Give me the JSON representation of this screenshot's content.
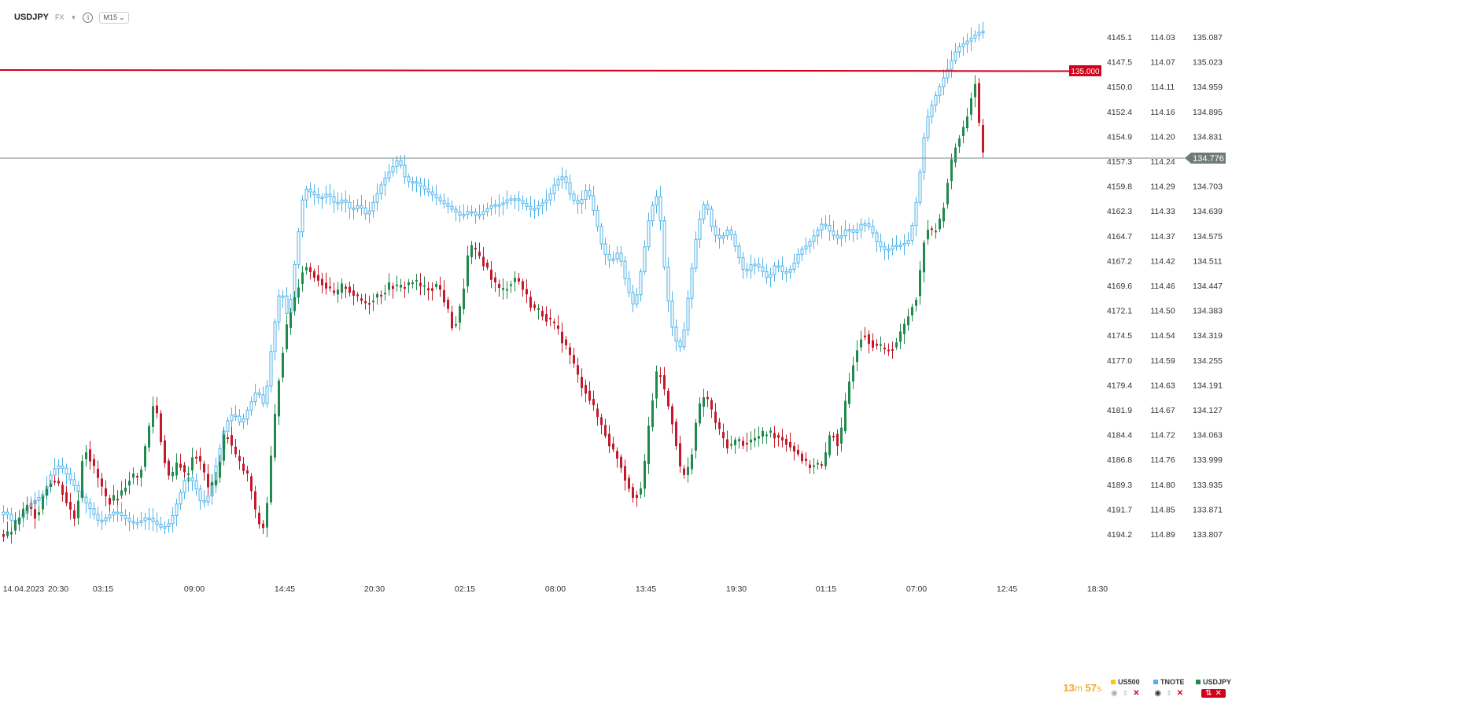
{
  "header": {
    "symbol": "USDJPY",
    "market": "FX",
    "timeframe": "M15"
  },
  "chart_data": {
    "type": "candlestick",
    "x_tick_labels": [
      "14.04.2023",
      "20:30",
      "03:15",
      "09:00",
      "14:45",
      "20:30",
      "02:15",
      "08:00",
      "13:45",
      "19:30",
      "01:15",
      "07:00",
      "12:45",
      "18:30"
    ],
    "axis_us500": {
      "labels": [
        "4145.1",
        "4147.5",
        "4150.0",
        "4152.4",
        "4154.9",
        "4157.3",
        "4159.8",
        "4162.3",
        "4164.7",
        "4167.2",
        "4169.6",
        "4172.1",
        "4174.5",
        "4177.0",
        "4179.4",
        "4181.9",
        "4184.4",
        "4186.8",
        "4189.3",
        "4191.7",
        "4194.2"
      ]
    },
    "axis_tnote": {
      "labels": [
        "114.03",
        "114.07",
        "114.11",
        "114.16",
        "114.20",
        "114.24",
        "114.29",
        "114.33",
        "114.37",
        "114.42",
        "114.46",
        "114.50",
        "114.54",
        "114.59",
        "114.63",
        "114.67",
        "114.72",
        "114.76",
        "114.80",
        "114.85",
        "114.89"
      ]
    },
    "axis_usdjpy": {
      "labels": [
        "135.087",
        "135.023",
        "134.959",
        "134.895",
        "134.831",
        "134.767",
        "134.703",
        "134.639",
        "134.575",
        "134.511",
        "134.447",
        "134.383",
        "134.319",
        "134.255",
        "134.191",
        "134.127",
        "134.063",
        "133.999",
        "133.935",
        "133.871",
        "133.807"
      ],
      "ylim": [
        133.78,
        135.13
      ]
    },
    "horizontal_line": {
      "value": 135.0,
      "label": "135.000",
      "color": "#d0021b"
    },
    "current_price": {
      "value": 134.776,
      "label": "134.776"
    },
    "usdjpy_path": [
      [
        0,
        133.81
      ],
      [
        10,
        133.8
      ],
      [
        20,
        133.82
      ],
      [
        30,
        133.86
      ],
      [
        40,
        133.88
      ],
      [
        50,
        133.85
      ],
      [
        60,
        133.92
      ],
      [
        70,
        133.95
      ],
      [
        80,
        133.93
      ],
      [
        90,
        133.88
      ],
      [
        100,
        133.84
      ],
      [
        110,
        134.04
      ],
      [
        120,
        133.99
      ],
      [
        130,
        133.94
      ],
      [
        140,
        133.89
      ],
      [
        150,
        133.9
      ],
      [
        160,
        133.92
      ],
      [
        170,
        133.96
      ],
      [
        180,
        133.95
      ],
      [
        190,
        134.05
      ],
      [
        200,
        134.16
      ],
      [
        210,
        134.02
      ],
      [
        220,
        133.94
      ],
      [
        230,
        134.0
      ],
      [
        240,
        133.95
      ],
      [
        250,
        134.02
      ],
      [
        260,
        133.98
      ],
      [
        270,
        133.92
      ],
      [
        280,
        133.96
      ],
      [
        290,
        134.08
      ],
      [
        300,
        134.02
      ],
      [
        310,
        133.98
      ],
      [
        320,
        133.95
      ],
      [
        330,
        133.84
      ],
      [
        340,
        133.82
      ],
      [
        350,
        134.05
      ],
      [
        360,
        134.25
      ],
      [
        370,
        134.36
      ],
      [
        380,
        134.43
      ],
      [
        390,
        134.5
      ],
      [
        400,
        134.48
      ],
      [
        410,
        134.46
      ],
      [
        420,
        134.44
      ],
      [
        430,
        134.42
      ],
      [
        440,
        134.45
      ],
      [
        450,
        134.43
      ],
      [
        460,
        134.41
      ],
      [
        470,
        134.4
      ],
      [
        480,
        134.42
      ],
      [
        490,
        134.43
      ],
      [
        500,
        134.45
      ],
      [
        510,
        134.44
      ],
      [
        520,
        134.45
      ],
      [
        530,
        134.46
      ],
      [
        540,
        134.44
      ],
      [
        550,
        134.44
      ],
      [
        560,
        134.45
      ],
      [
        570,
        134.4
      ],
      [
        580,
        134.33
      ],
      [
        590,
        134.4
      ],
      [
        600,
        134.55
      ],
      [
        610,
        134.53
      ],
      [
        620,
        134.5
      ],
      [
        630,
        134.46
      ],
      [
        640,
        134.43
      ],
      [
        650,
        134.45
      ],
      [
        660,
        134.47
      ],
      [
        670,
        134.43
      ],
      [
        680,
        134.39
      ],
      [
        690,
        134.38
      ],
      [
        700,
        134.36
      ],
      [
        710,
        134.34
      ],
      [
        720,
        134.3
      ],
      [
        730,
        134.26
      ],
      [
        740,
        134.2
      ],
      [
        750,
        134.17
      ],
      [
        760,
        134.12
      ],
      [
        770,
        134.08
      ],
      [
        780,
        134.03
      ],
      [
        790,
        134.0
      ],
      [
        800,
        133.94
      ],
      [
        810,
        133.9
      ],
      [
        820,
        133.93
      ],
      [
        830,
        134.12
      ],
      [
        840,
        134.24
      ],
      [
        850,
        134.16
      ],
      [
        860,
        134.08
      ],
      [
        870,
        133.95
      ],
      [
        880,
        133.98
      ],
      [
        890,
        134.12
      ],
      [
        900,
        134.17
      ],
      [
        910,
        134.11
      ],
      [
        920,
        134.06
      ],
      [
        930,
        134.03
      ],
      [
        940,
        134.05
      ],
      [
        950,
        134.04
      ],
      [
        960,
        134.05
      ],
      [
        970,
        134.06
      ],
      [
        980,
        134.07
      ],
      [
        990,
        134.06
      ],
      [
        1000,
        134.05
      ],
      [
        1010,
        134.03
      ],
      [
        1020,
        134.01
      ],
      [
        1030,
        133.98
      ],
      [
        1040,
        133.99
      ],
      [
        1050,
        133.98
      ],
      [
        1060,
        134.08
      ],
      [
        1070,
        134.03
      ],
      [
        1080,
        134.17
      ],
      [
        1090,
        134.27
      ],
      [
        1100,
        134.33
      ],
      [
        1110,
        134.3
      ],
      [
        1120,
        134.29
      ],
      [
        1130,
        134.28
      ],
      [
        1140,
        134.29
      ],
      [
        1150,
        134.33
      ],
      [
        1160,
        134.38
      ],
      [
        1170,
        134.43
      ],
      [
        1180,
        134.6
      ],
      [
        1190,
        134.58
      ],
      [
        1200,
        134.62
      ],
      [
        1210,
        134.74
      ],
      [
        1220,
        134.82
      ],
      [
        1230,
        134.86
      ],
      [
        1240,
        134.95
      ],
      [
        1245,
        134.98
      ],
      [
        1250,
        134.78
      ]
    ],
    "tnote_path": [
      [
        0,
        114.86
      ],
      [
        10,
        114.85
      ],
      [
        20,
        114.87
      ],
      [
        30,
        114.86
      ],
      [
        40,
        114.84
      ],
      [
        50,
        114.83
      ],
      [
        60,
        114.82
      ],
      [
        70,
        114.78
      ],
      [
        80,
        114.77
      ],
      [
        90,
        114.79
      ],
      [
        100,
        114.81
      ],
      [
        110,
        114.83
      ],
      [
        120,
        114.85
      ],
      [
        130,
        114.87
      ],
      [
        140,
        114.86
      ],
      [
        150,
        114.85
      ],
      [
        160,
        114.86
      ],
      [
        170,
        114.87
      ],
      [
        180,
        114.87
      ],
      [
        190,
        114.86
      ],
      [
        200,
        114.87
      ],
      [
        210,
        114.88
      ],
      [
        220,
        114.87
      ],
      [
        230,
        114.83
      ],
      [
        240,
        114.79
      ],
      [
        250,
        114.8
      ],
      [
        260,
        114.84
      ],
      [
        270,
        114.82
      ],
      [
        280,
        114.76
      ],
      [
        290,
        114.7
      ],
      [
        300,
        114.68
      ],
      [
        310,
        114.7
      ],
      [
        320,
        114.67
      ],
      [
        330,
        114.64
      ],
      [
        340,
        114.67
      ],
      [
        350,
        114.55
      ],
      [
        360,
        114.46
      ],
      [
        370,
        114.52
      ],
      [
        380,
        114.4
      ],
      [
        390,
        114.29
      ],
      [
        400,
        114.3
      ],
      [
        410,
        114.31
      ],
      [
        420,
        114.3
      ],
      [
        430,
        114.32
      ],
      [
        440,
        114.31
      ],
      [
        450,
        114.33
      ],
      [
        460,
        114.32
      ],
      [
        470,
        114.34
      ],
      [
        480,
        114.31
      ],
      [
        490,
        114.28
      ],
      [
        500,
        114.26
      ],
      [
        510,
        114.24
      ],
      [
        520,
        114.28
      ],
      [
        530,
        114.28
      ],
      [
        540,
        114.29
      ],
      [
        550,
        114.3
      ],
      [
        560,
        114.31
      ],
      [
        570,
        114.32
      ],
      [
        580,
        114.33
      ],
      [
        590,
        114.34
      ],
      [
        600,
        114.33
      ],
      [
        610,
        114.34
      ],
      [
        620,
        114.33
      ],
      [
        630,
        114.32
      ],
      [
        640,
        114.32
      ],
      [
        650,
        114.31
      ],
      [
        660,
        114.31
      ],
      [
        670,
        114.32
      ],
      [
        680,
        114.33
      ],
      [
        690,
        114.32
      ],
      [
        700,
        114.31
      ],
      [
        710,
        114.28
      ],
      [
        720,
        114.27
      ],
      [
        730,
        114.31
      ],
      [
        740,
        114.32
      ],
      [
        750,
        114.29
      ],
      [
        760,
        114.34
      ],
      [
        770,
        114.4
      ],
      [
        780,
        114.42
      ],
      [
        790,
        114.4
      ],
      [
        800,
        114.46
      ],
      [
        810,
        114.5
      ],
      [
        820,
        114.42
      ],
      [
        830,
        114.33
      ],
      [
        840,
        114.3
      ],
      [
        850,
        114.46
      ],
      [
        860,
        114.55
      ],
      [
        870,
        114.57
      ],
      [
        880,
        114.46
      ],
      [
        890,
        114.36
      ],
      [
        900,
        114.31
      ],
      [
        910,
        114.37
      ],
      [
        920,
        114.38
      ],
      [
        930,
        114.36
      ],
      [
        940,
        114.4
      ],
      [
        950,
        114.44
      ],
      [
        960,
        114.42
      ],
      [
        970,
        114.43
      ],
      [
        980,
        114.45
      ],
      [
        990,
        114.42
      ],
      [
        1000,
        114.44
      ],
      [
        1010,
        114.43
      ],
      [
        1020,
        114.4
      ],
      [
        1030,
        114.39
      ],
      [
        1040,
        114.37
      ],
      [
        1050,
        114.35
      ],
      [
        1060,
        114.37
      ],
      [
        1070,
        114.38
      ],
      [
        1080,
        114.36
      ],
      [
        1090,
        114.37
      ],
      [
        1100,
        114.35
      ],
      [
        1110,
        114.36
      ],
      [
        1120,
        114.39
      ],
      [
        1130,
        114.4
      ],
      [
        1140,
        114.39
      ],
      [
        1150,
        114.39
      ],
      [
        1160,
        114.38
      ],
      [
        1170,
        114.3
      ],
      [
        1180,
        114.18
      ],
      [
        1190,
        114.14
      ],
      [
        1200,
        114.11
      ],
      [
        1210,
        114.08
      ],
      [
        1220,
        114.05
      ],
      [
        1230,
        114.04
      ],
      [
        1240,
        114.03
      ],
      [
        1250,
        114.02
      ]
    ]
  },
  "legend": [
    {
      "name": "US500",
      "color": "#f5c518"
    },
    {
      "name": "TNOTE",
      "color": "#4fb3e8"
    },
    {
      "name": "USDJPY",
      "color": "#1f8a4c"
    }
  ],
  "timer": {
    "minutes": "13",
    "m_unit": "m",
    "seconds": "57",
    "s_unit": "s"
  },
  "colors": {
    "up": "#1f8a4c",
    "down": "#c4192a",
    "tnote": "#4fb3e8",
    "line": "#d0021b",
    "axis_text": "#333333"
  }
}
